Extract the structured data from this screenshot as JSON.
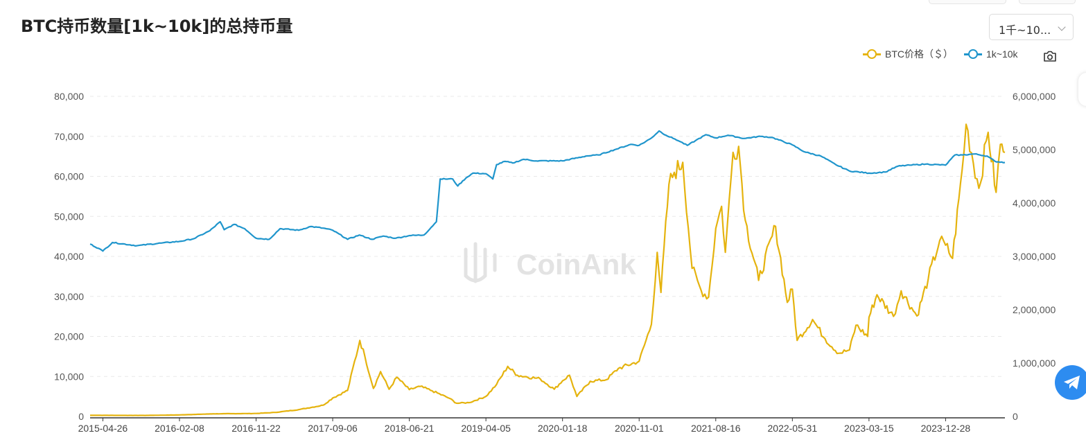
{
  "header": {
    "title": "BTC持币数量[1k~10k]的总持币量",
    "range_select": "1千~10..."
  },
  "legend": {
    "price_label": "BTC价格（＄）",
    "holdings_label": "1k~10k"
  },
  "watermark": "CoinAnk",
  "colors": {
    "price": "#e5b30e",
    "holdings": "#1f95cc",
    "accent": "#2d8cf0"
  },
  "icons": {
    "camera": "camera-icon",
    "telegram": "telegram-icon"
  },
  "chart_data": {
    "type": "line",
    "x_dates": [
      "2015-04-26",
      "2016-02-08",
      "2016-11-22",
      "2017-09-06",
      "2018-06-21",
      "2019-04-05",
      "2020-01-18",
      "2020-11-01",
      "2021-08-16",
      "2022-05-31",
      "2023-03-15",
      "2023-12-28"
    ],
    "x_range": [
      "2015-03-09",
      "2024-08-07"
    ],
    "y_left": {
      "ylim": [
        0,
        80000
      ],
      "ticks": [
        "0",
        "10,000",
        "20,000",
        "30,000",
        "40,000",
        "50,000",
        "60,000",
        "70,000",
        "80,000"
      ]
    },
    "y_right": {
      "ylim": [
        0,
        6000000
      ],
      "ticks": [
        "0",
        "1,000,000",
        "2,000,000",
        "3,000,000",
        "4,000,000",
        "5,000,000",
        "6,000,000"
      ]
    },
    "grid": true,
    "legend_position": "top-right",
    "series": [
      {
        "name": "BTC价格（＄）",
        "axis": "left",
        "points": [
          [
            "2015-03-09",
            280
          ],
          [
            "2015-10-01",
            250
          ],
          [
            "2016-02-08",
            380
          ],
          [
            "2016-06-15",
            650
          ],
          [
            "2016-11-22",
            740
          ],
          [
            "2017-02-01",
            1000
          ],
          [
            "2017-05-01",
            1700
          ],
          [
            "2017-08-01",
            2800
          ],
          [
            "2017-09-06",
            4600
          ],
          [
            "2017-11-01",
            6500
          ],
          [
            "2017-12-17",
            19000
          ],
          [
            "2018-01-05",
            15000
          ],
          [
            "2018-02-06",
            7000
          ],
          [
            "2018-03-05",
            11200
          ],
          [
            "2018-04-06",
            6800
          ],
          [
            "2018-05-05",
            9800
          ],
          [
            "2018-06-21",
            6700
          ],
          [
            "2018-08-01",
            7500
          ],
          [
            "2018-09-15",
            6400
          ],
          [
            "2018-11-20",
            4500
          ],
          [
            "2018-12-15",
            3300
          ],
          [
            "2019-02-01",
            3450
          ],
          [
            "2019-04-05",
            5000
          ],
          [
            "2019-05-15",
            8000
          ],
          [
            "2019-06-26",
            12500
          ],
          [
            "2019-08-01",
            10300
          ],
          [
            "2019-10-26",
            9400
          ],
          [
            "2019-12-18",
            6800
          ],
          [
            "2020-01-18",
            8900
          ],
          [
            "2020-02-13",
            10300
          ],
          [
            "2020-03-12",
            5000
          ],
          [
            "2020-05-01",
            8800
          ],
          [
            "2020-07-01",
            9200
          ],
          [
            "2020-08-15",
            12000
          ],
          [
            "2020-11-01",
            13800
          ],
          [
            "2020-12-17",
            23000
          ],
          [
            "2021-01-08",
            41000
          ],
          [
            "2021-01-22",
            31000
          ],
          [
            "2021-02-21",
            58000
          ],
          [
            "2021-03-13",
            61000
          ],
          [
            "2021-04-14",
            63500
          ],
          [
            "2021-05-19",
            37000
          ],
          [
            "2021-06-22",
            31500
          ],
          [
            "2021-07-20",
            29800
          ],
          [
            "2021-08-16",
            47000
          ],
          [
            "2021-09-07",
            52500
          ],
          [
            "2021-09-21",
            41000
          ],
          [
            "2021-10-20",
            66000
          ],
          [
            "2021-11-10",
            67500
          ],
          [
            "2021-12-05",
            49000
          ],
          [
            "2022-01-24",
            34000
          ],
          [
            "2022-03-29",
            47500
          ],
          [
            "2022-05-12",
            28500
          ],
          [
            "2022-05-31",
            31800
          ],
          [
            "2022-06-18",
            19000
          ],
          [
            "2022-08-15",
            24200
          ],
          [
            "2022-10-01",
            19400
          ],
          [
            "2022-11-21",
            15800
          ],
          [
            "2023-01-01",
            16600
          ],
          [
            "2023-01-25",
            22800
          ],
          [
            "2023-03-10",
            20000
          ],
          [
            "2023-03-15",
            24800
          ],
          [
            "2023-04-14",
            30400
          ],
          [
            "2023-06-15",
            25000
          ],
          [
            "2023-07-14",
            31400
          ],
          [
            "2023-09-11",
            25100
          ],
          [
            "2023-10-24",
            34500
          ],
          [
            "2023-12-06",
            44000
          ],
          [
            "2023-12-28",
            42800
          ],
          [
            "2024-01-23",
            39500
          ],
          [
            "2024-02-28",
            61500
          ],
          [
            "2024-03-14",
            73000
          ],
          [
            "2024-05-01",
            57000
          ],
          [
            "2024-06-05",
            71000
          ],
          [
            "2024-07-05",
            56000
          ],
          [
            "2024-07-21",
            68000
          ],
          [
            "2024-08-07",
            66000
          ]
        ]
      },
      {
        "name": "1k~10k",
        "axis": "right",
        "points": [
          [
            "2015-03-09",
            3230000
          ],
          [
            "2015-04-10",
            3150000
          ],
          [
            "2015-04-26",
            3100000
          ],
          [
            "2015-06-01",
            3260000
          ],
          [
            "2015-09-01",
            3200000
          ],
          [
            "2015-12-01",
            3250000
          ],
          [
            "2016-02-08",
            3280000
          ],
          [
            "2016-04-01",
            3330000
          ],
          [
            "2016-06-01",
            3480000
          ],
          [
            "2016-07-10",
            3650000
          ],
          [
            "2016-07-25",
            3500000
          ],
          [
            "2016-09-01",
            3600000
          ],
          [
            "2016-10-10",
            3520000
          ],
          [
            "2016-11-22",
            3340000
          ],
          [
            "2017-01-10",
            3320000
          ],
          [
            "2017-02-20",
            3520000
          ],
          [
            "2017-05-01",
            3490000
          ],
          [
            "2017-06-15",
            3560000
          ],
          [
            "2017-08-01",
            3530000
          ],
          [
            "2017-09-06",
            3490000
          ],
          [
            "2017-11-01",
            3320000
          ],
          [
            "2017-12-15",
            3400000
          ],
          [
            "2018-02-01",
            3320000
          ],
          [
            "2018-03-15",
            3380000
          ],
          [
            "2018-05-01",
            3340000
          ],
          [
            "2018-06-21",
            3390000
          ],
          [
            "2018-08-15",
            3400000
          ],
          [
            "2018-10-01",
            3650000
          ],
          [
            "2018-10-15",
            4450000
          ],
          [
            "2018-12-01",
            4450000
          ],
          [
            "2018-12-20",
            4320000
          ],
          [
            "2019-01-20",
            4470000
          ],
          [
            "2019-02-15",
            4560000
          ],
          [
            "2019-04-05",
            4550000
          ],
          [
            "2019-05-01",
            4450000
          ],
          [
            "2019-05-15",
            4720000
          ],
          [
            "2019-06-15",
            4780000
          ],
          [
            "2019-07-15",
            4750000
          ],
          [
            "2019-08-25",
            4820000
          ],
          [
            "2019-10-10",
            4790000
          ],
          [
            "2020-01-18",
            4790000
          ],
          [
            "2020-04-15",
            4880000
          ],
          [
            "2020-06-01",
            4900000
          ],
          [
            "2020-08-01",
            5000000
          ],
          [
            "2020-10-01",
            5100000
          ],
          [
            "2020-11-01",
            5080000
          ],
          [
            "2020-12-15",
            5210000
          ],
          [
            "2021-01-15",
            5350000
          ],
          [
            "2021-02-10",
            5270000
          ],
          [
            "2021-03-15",
            5200000
          ],
          [
            "2021-04-05",
            5150000
          ],
          [
            "2021-05-01",
            5080000
          ],
          [
            "2021-06-01",
            5170000
          ],
          [
            "2021-07-10",
            5280000
          ],
          [
            "2021-08-16",
            5220000
          ],
          [
            "2021-10-01",
            5270000
          ],
          [
            "2021-12-01",
            5210000
          ],
          [
            "2022-02-01",
            5250000
          ],
          [
            "2022-03-15",
            5230000
          ],
          [
            "2022-05-31",
            5090000
          ],
          [
            "2022-07-15",
            4960000
          ],
          [
            "2022-09-15",
            4880000
          ],
          [
            "2022-11-10",
            4720000
          ],
          [
            "2023-01-01",
            4600000
          ],
          [
            "2023-03-15",
            4560000
          ],
          [
            "2023-05-15",
            4580000
          ],
          [
            "2023-07-01",
            4690000
          ],
          [
            "2023-08-15",
            4710000
          ],
          [
            "2023-10-15",
            4730000
          ],
          [
            "2023-12-28",
            4710000
          ],
          [
            "2024-02-01",
            4900000
          ],
          [
            "2024-03-01",
            4900000
          ],
          [
            "2024-04-15",
            4920000
          ],
          [
            "2024-06-01",
            4880000
          ],
          [
            "2024-07-01",
            4780000
          ],
          [
            "2024-08-07",
            4760000
          ]
        ]
      }
    ]
  }
}
